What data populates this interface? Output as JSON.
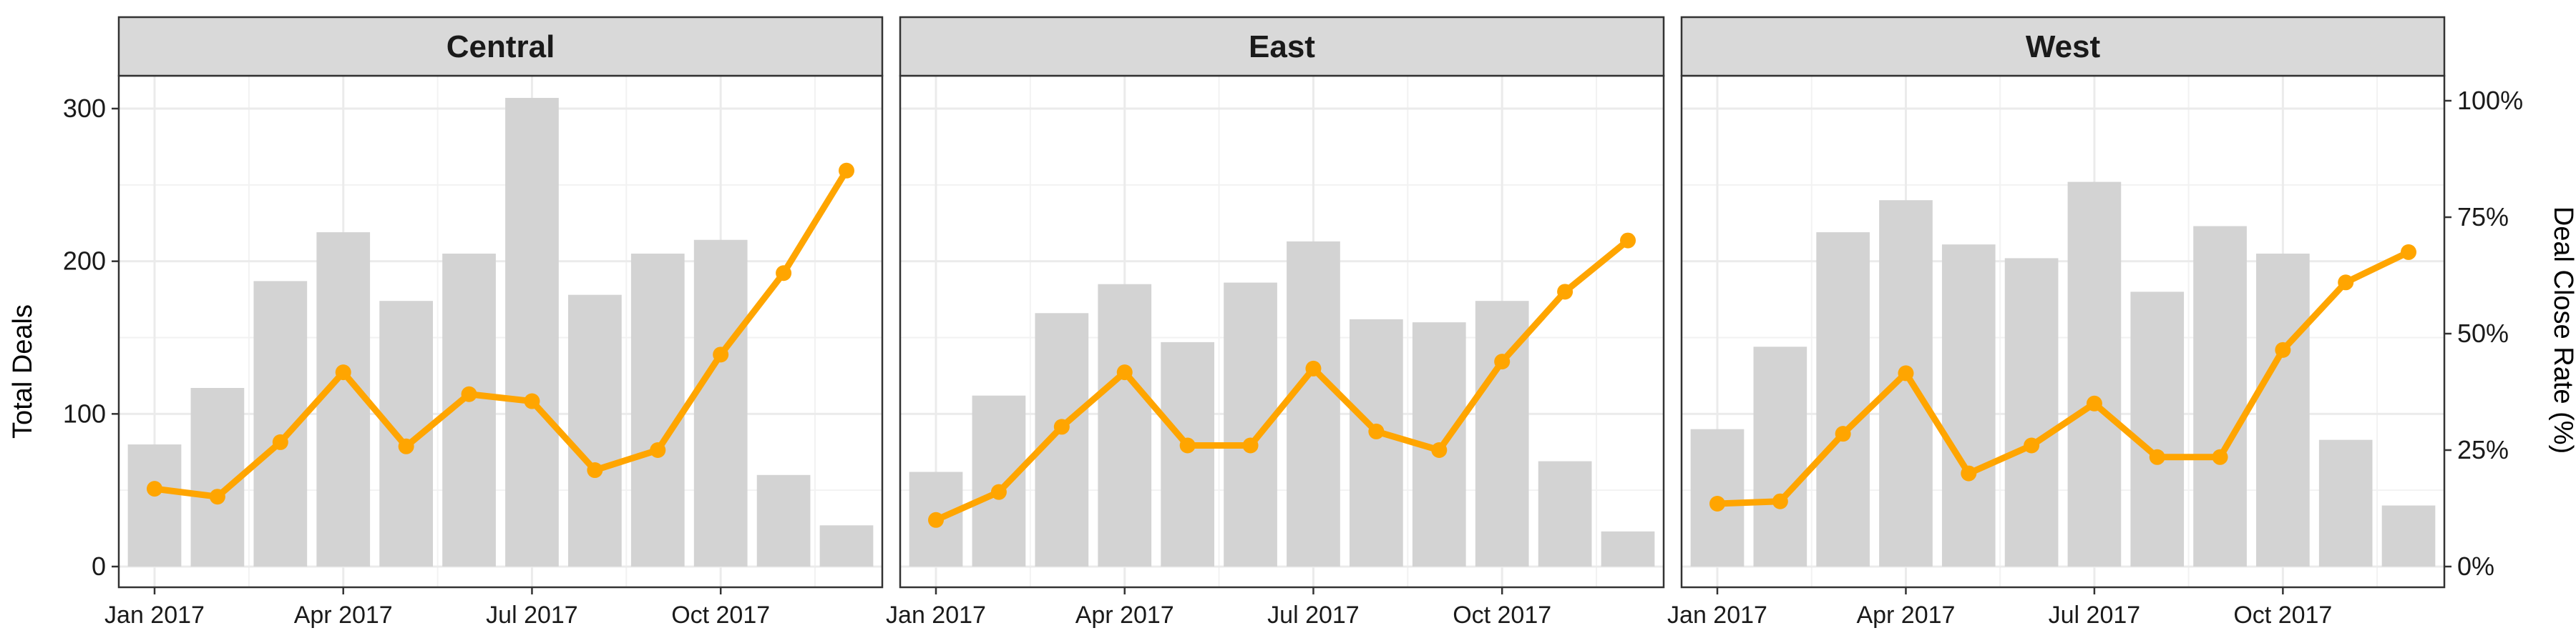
{
  "chart_data": {
    "type": "bar",
    "y_left_label": "Total Deals",
    "y_right_label": "Deal Close Rate (%)",
    "y_left_range": [
      0,
      325
    ],
    "y_right_range": [
      0,
      1.0
    ],
    "y_left_ticks": [
      0,
      100,
      200,
      300
    ],
    "y_right_ticks": [
      {
        "value": 0,
        "label": "0%"
      },
      {
        "value": 0.25,
        "label": "25%"
      },
      {
        "value": 0.5,
        "label": "50%"
      },
      {
        "value": 0.75,
        "label": "75%"
      },
      {
        "value": 1.0,
        "label": "100%"
      }
    ],
    "x_ticks": [
      {
        "month_index": 0,
        "label": "Jan 2017"
      },
      {
        "month_index": 3,
        "label": "Apr 2017"
      },
      {
        "month_index": 6,
        "label": "Jul 2017"
      },
      {
        "month_index": 9,
        "label": "Oct 2017"
      }
    ],
    "months": [
      "2017-01",
      "2017-02",
      "2017-03",
      "2017-04",
      "2017-05",
      "2017-06",
      "2017-07",
      "2017-08",
      "2017-09",
      "2017-10",
      "2017-11",
      "2017-12"
    ],
    "bar_color": "#d3d3d3",
    "line_color": "#ffa500",
    "facets": [
      {
        "title": "Central",
        "total_deals": [
          80,
          117,
          187,
          219,
          174,
          205,
          307,
          178,
          205,
          214,
          60,
          27
        ],
        "close_rate": [
          0.167,
          0.15,
          0.267,
          0.417,
          0.258,
          0.37,
          0.355,
          0.207,
          0.25,
          0.455,
          0.63,
          0.85
        ]
      },
      {
        "title": "East",
        "total_deals": [
          62,
          112,
          166,
          185,
          147,
          186,
          213,
          162,
          160,
          174,
          69,
          23
        ],
        "close_rate": [
          0.1,
          0.16,
          0.3,
          0.417,
          0.26,
          0.26,
          0.425,
          0.29,
          0.25,
          0.44,
          0.59,
          0.7
        ]
      },
      {
        "title": "West",
        "total_deals": [
          90,
          144,
          219,
          240,
          211,
          202,
          252,
          180,
          223,
          205,
          83,
          40
        ],
        "close_rate": [
          0.135,
          0.14,
          0.285,
          0.415,
          0.2,
          0.26,
          0.35,
          0.235,
          0.235,
          0.465,
          0.61,
          0.675
        ]
      }
    ]
  }
}
